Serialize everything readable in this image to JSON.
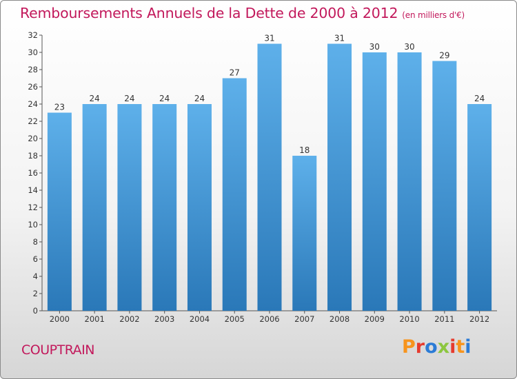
{
  "header": {
    "title": "Remboursements Annuels de la Dette de 2000 à 2012",
    "unit": "(en milliers d'€)"
  },
  "footer": {
    "commune": "COUPTRAIN",
    "logo_text": "Proxiti",
    "logo_colors": [
      "#f7941d",
      "#e63b2e",
      "#2b7bd6",
      "#8cc63f",
      "#e63b2e",
      "#f7941d",
      "#2b7bd6"
    ]
  },
  "colors": {
    "bar_top": "#5eb0ea",
    "bar_bottom": "#2a78b8",
    "title": "#c2185b"
  },
  "chart_data": {
    "type": "bar",
    "title": "Remboursements Annuels de la Dette de 2000 à 2012",
    "xlabel": "",
    "ylabel": "",
    "categories": [
      "2000",
      "2001",
      "2002",
      "2003",
      "2004",
      "2005",
      "2006",
      "2007",
      "2008",
      "2009",
      "2010",
      "2011",
      "2012"
    ],
    "values": [
      23,
      24,
      24,
      24,
      24,
      27,
      31,
      18,
      31,
      30,
      30,
      29,
      24
    ],
    "ylim": [
      0,
      32
    ],
    "yticks": [
      0,
      2,
      4,
      6,
      8,
      10,
      12,
      14,
      16,
      18,
      20,
      22,
      24,
      26,
      28,
      30,
      32
    ],
    "grid": false,
    "legend": "none"
  }
}
